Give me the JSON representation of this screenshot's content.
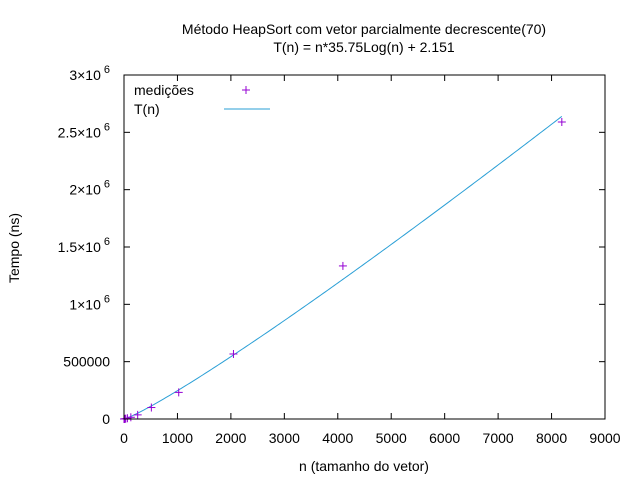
{
  "chart_data": {
    "type": "scatter",
    "title": "Método HeapSort com vetor parcialmente decrescente(70)",
    "subtitle": "T(n) = n*35.75Log(n) + 2.151",
    "xlabel": "n (tamanho do vetor)",
    "ylabel": "Tempo (ns)",
    "xlim": [
      0,
      9000
    ],
    "ylim": [
      0,
      3000000
    ],
    "x_ticks": [
      {
        "value": 0,
        "label": "0"
      },
      {
        "value": 1000,
        "label": "1000"
      },
      {
        "value": 2000,
        "label": "2000"
      },
      {
        "value": 3000,
        "label": "3000"
      },
      {
        "value": 4000,
        "label": "4000"
      },
      {
        "value": 5000,
        "label": "5000"
      },
      {
        "value": 6000,
        "label": "6000"
      },
      {
        "value": 7000,
        "label": "7000"
      },
      {
        "value": 8000,
        "label": "8000"
      },
      {
        "value": 9000,
        "label": "9000"
      }
    ],
    "y_ticks": [
      {
        "value": 0,
        "mantissa": "0",
        "exp": ""
      },
      {
        "value": 500000,
        "mantissa": "500000",
        "exp": ""
      },
      {
        "value": 1000000,
        "mantissa": "1×10",
        "exp": "6"
      },
      {
        "value": 1500000,
        "mantissa": "1.5×10",
        "exp": "6"
      },
      {
        "value": 2000000,
        "mantissa": "2×10",
        "exp": "6"
      },
      {
        "value": 2500000,
        "mantissa": "2.5×10",
        "exp": "6"
      },
      {
        "value": 3000000,
        "mantissa": "3×10",
        "exp": "6"
      }
    ],
    "grid": false,
    "legend_position": "top-left",
    "series": [
      {
        "name": "medições",
        "kind": "points",
        "color": "#9400d3",
        "marker": "plus",
        "x": [
          1,
          2,
          4,
          8,
          16,
          32,
          64,
          128,
          256,
          512,
          1024,
          2048,
          4096,
          8192
        ],
        "y": [
          0,
          50,
          150,
          450,
          1200,
          2900,
          6500,
          15000,
          36000,
          100000,
          232000,
          567000,
          1335000,
          2590000
        ]
      },
      {
        "name": "T(n)",
        "kind": "line",
        "color": "#2a9fd6",
        "function": "n*35.75*log(n) + 2.151",
        "x_range": [
          1,
          8192
        ]
      }
    ]
  }
}
